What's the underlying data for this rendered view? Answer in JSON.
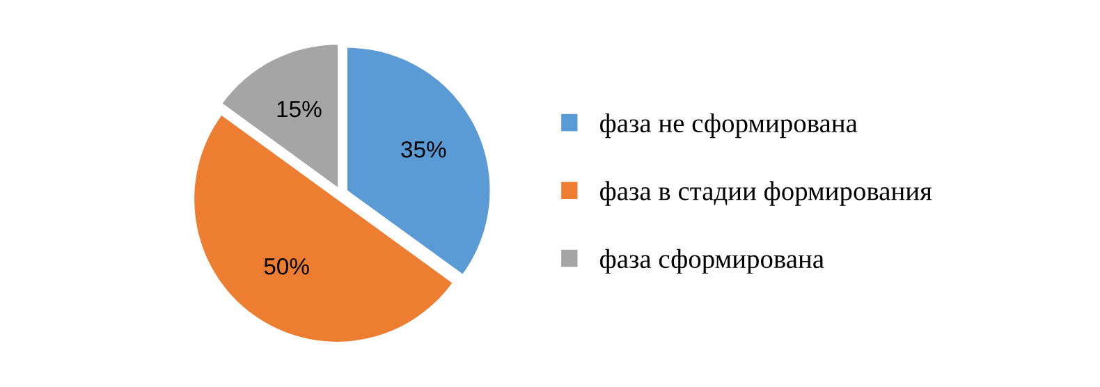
{
  "chart_data": {
    "type": "pie",
    "categories": [
      "фаза не сформирована",
      "фаза в стадии формирования",
      "фаза сформирована"
    ],
    "values": [
      35,
      50,
      15
    ],
    "colors": [
      "#5b9bd5",
      "#ed7d31",
      "#a5a5a5"
    ],
    "value_labels": [
      "35%",
      "50%",
      "15%"
    ],
    "legend": "right"
  }
}
